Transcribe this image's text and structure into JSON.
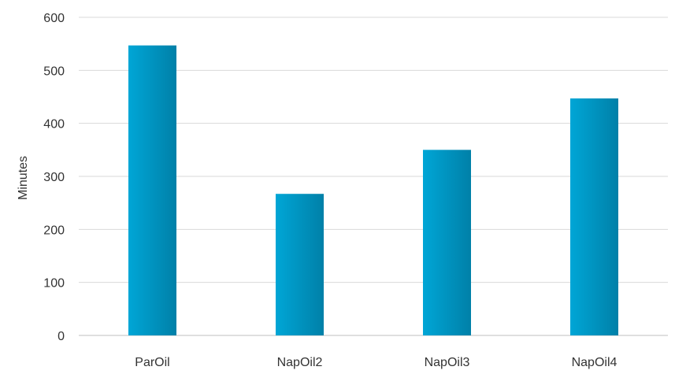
{
  "chart_data": {
    "type": "bar",
    "categories": [
      "ParOil",
      "NapOil2",
      "NapOil3",
      "NapOil4"
    ],
    "values": [
      547,
      267,
      350,
      447
    ],
    "title": "",
    "xlabel": "",
    "ylabel": "Minutes",
    "ylim": [
      0,
      600
    ],
    "yticks": [
      0,
      100,
      200,
      300,
      400,
      500,
      600
    ],
    "grid": true,
    "legend": "none",
    "colors": {
      "bar_light": "#00a6d6",
      "bar_dark": "#0080a8",
      "grid": "#d9d9d9",
      "axis": "#bfbfbf",
      "text": "#333333"
    }
  }
}
